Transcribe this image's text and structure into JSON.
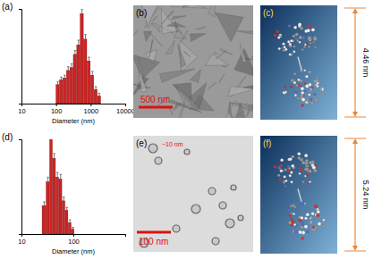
{
  "chart_data": [
    {
      "type": "histogram",
      "title": "(a)",
      "x_label": "Diameter (nm)",
      "bins": [
        100,
        126,
        158,
        200,
        251,
        316,
        398,
        501,
        631,
        794,
        1000,
        1259,
        1585,
        1995
      ],
      "values": [
        20,
        25,
        27,
        35,
        38,
        52,
        62,
        95,
        68,
        45,
        30,
        15,
        8
      ],
      "errors": [
        3,
        3,
        3,
        4,
        4,
        4,
        5,
        5,
        5,
        4,
        4,
        3,
        3
      ],
      "color": "#cc2424",
      "log": "x",
      "grid": false,
      "tick_labels": "x",
      "xlim": [
        10,
        10000
      ],
      "xticks": [
        10,
        100,
        1000,
        10000
      ],
      "ylim": [
        0,
        100
      ],
      "yticks": []
    },
    {
      "type": "histogram",
      "title": "(d)",
      "x_label": "Diameter (nm)",
      "bins": [
        25,
        30,
        35,
        40,
        46,
        53,
        61,
        70,
        80,
        92,
        105
      ],
      "values": [
        30,
        55,
        100,
        80,
        60,
        58,
        35,
        25,
        12,
        5
      ],
      "errors": [
        4,
        5,
        6,
        5,
        5,
        5,
        4,
        3,
        3,
        2
      ],
      "color": "#cc2424",
      "log": "x",
      "grid": false,
      "tick_labels": "x",
      "xlim": [
        10,
        1000
      ],
      "xticks": [
        10,
        100
      ],
      "ylim": [
        0,
        100
      ],
      "yticks": []
    }
  ],
  "images": [
    {
      "title": "(b)",
      "scale_bar": "500 nm"
    },
    {
      "title": "(c)",
      "dimension": "4.46 nm"
    },
    {
      "title": "(e)",
      "annotation": "~10 nm",
      "scale_bar": "100 nm"
    },
    {
      "title": "(f)",
      "dimension": "5.24 nm"
    }
  ]
}
